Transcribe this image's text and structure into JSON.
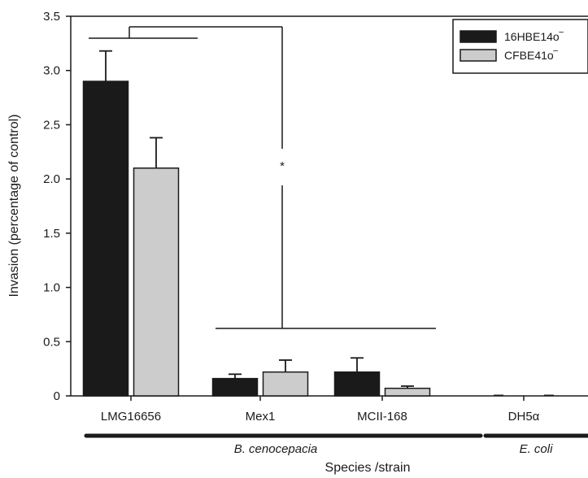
{
  "chart_data": {
    "type": "bar",
    "xlabel": "Species /strain",
    "ylabel": "Invasion (percentage of control)",
    "ylim": [
      0,
      3.5
    ],
    "yticks": [
      0,
      0.5,
      1.0,
      1.5,
      2.0,
      2.5,
      3.0,
      3.5
    ],
    "ytick_labels": [
      "0",
      "0.5",
      "1.0",
      "1.5",
      "2.0",
      "2.5",
      "3.0",
      "3.5"
    ],
    "grid": false,
    "legend_position": "top-right",
    "categories": [
      "LMG16656",
      "Mex1",
      "MCII-168",
      "DH5α"
    ],
    "series": [
      {
        "name": "16HBE14o‾",
        "color": "#1a1a1a",
        "values": [
          2.9,
          0.16,
          0.22,
          0.0
        ],
        "errors": [
          0.28,
          0.04,
          0.13,
          0.0
        ]
      },
      {
        "name": "CFBE41o‾",
        "color": "#cccccc",
        "values": [
          2.1,
          0.22,
          0.07,
          0.0
        ],
        "errors": [
          0.28,
          0.11,
          0.02,
          0.0
        ]
      }
    ],
    "species_groups": [
      {
        "label": "B. cenocepacia",
        "categories": [
          "LMG16656",
          "Mex1",
          "MCII-168"
        ]
      },
      {
        "label": "E. coli",
        "categories": [
          "DH5α"
        ]
      }
    ],
    "annotations": [
      {
        "text": "*",
        "meaning": "significance bracket between LMG16656 and Mex1/MCII-168"
      }
    ]
  }
}
